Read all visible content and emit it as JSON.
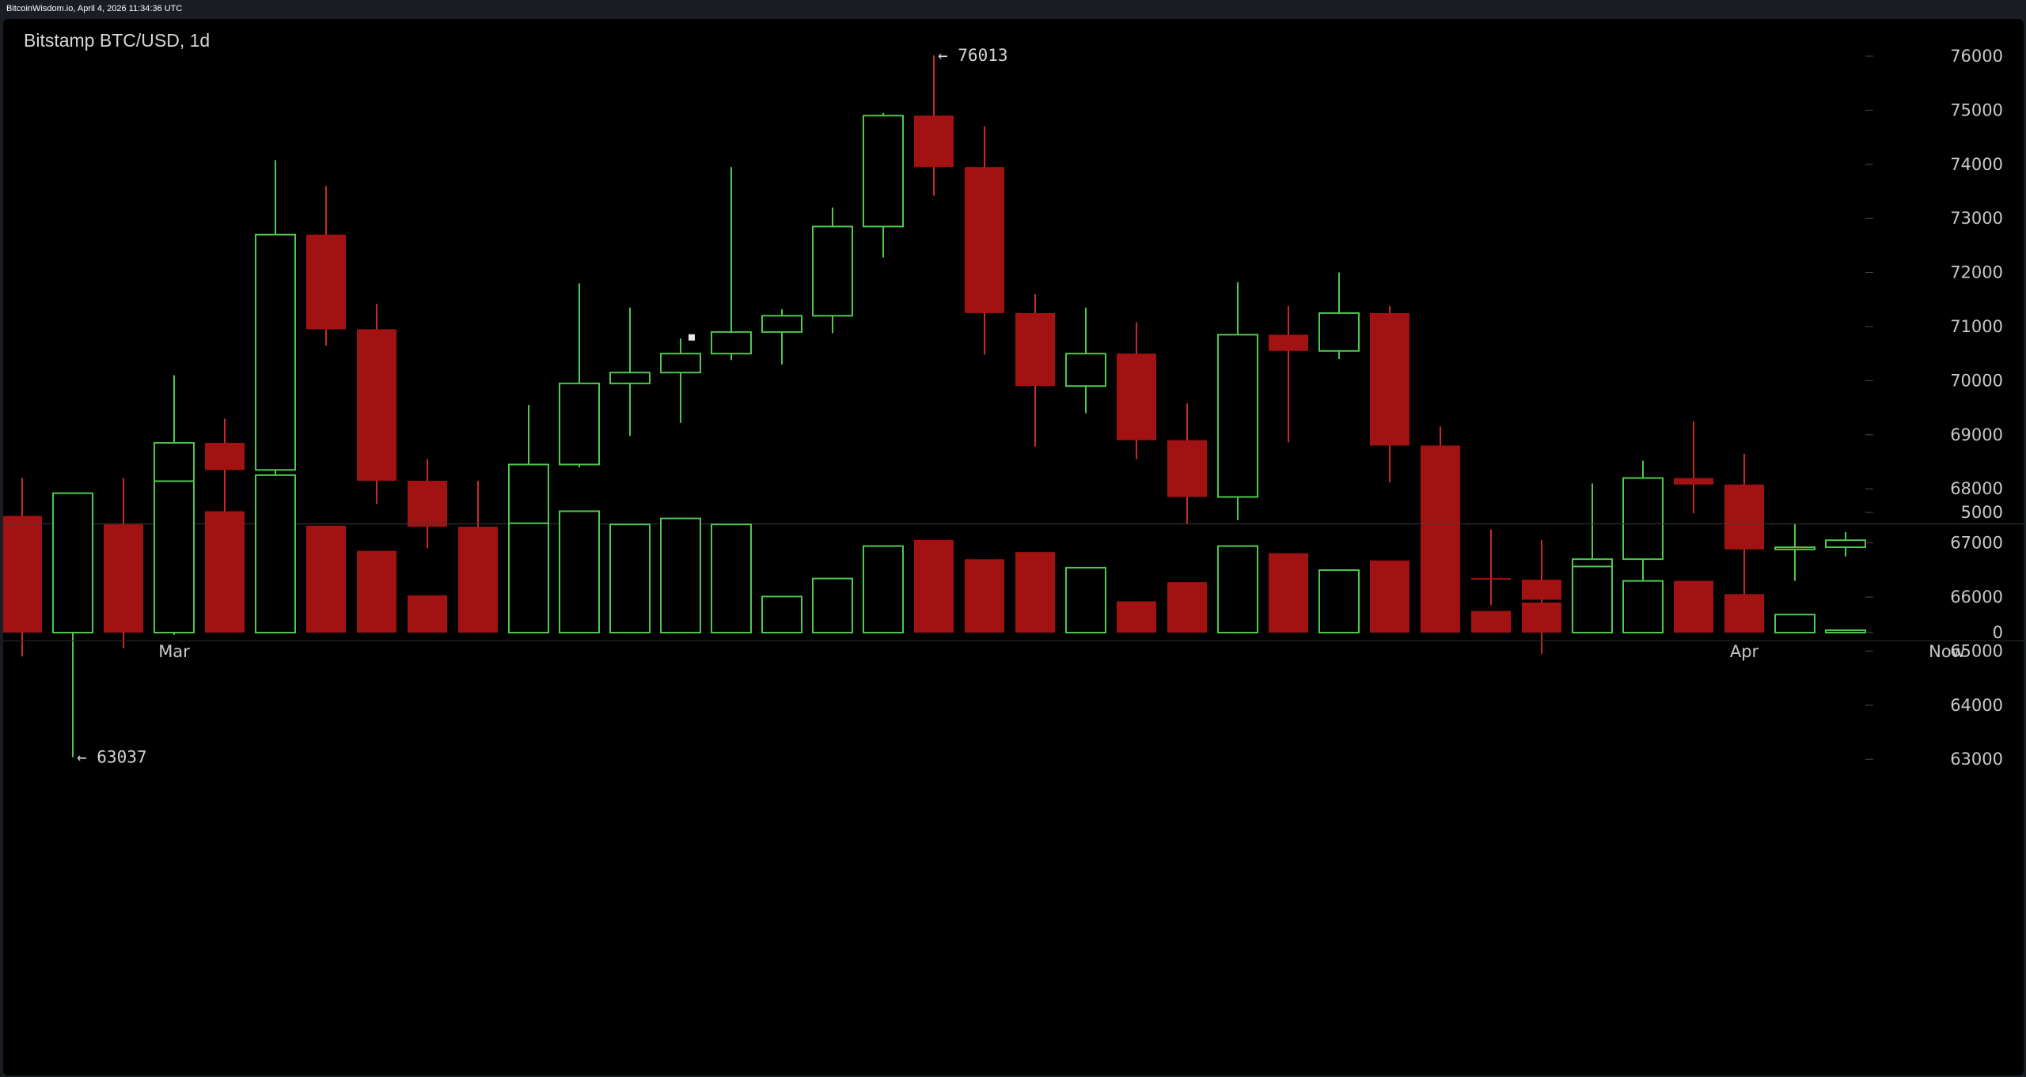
{
  "header": {
    "site_line": "BitcoinWisdom.io, April 4, 2026 11:34:36 UTC"
  },
  "chart_data": {
    "type": "candlestick",
    "title": "Bitstamp BTC/USD, 1d",
    "interval": "1d",
    "ylim": [
      62000,
      77000
    ],
    "yticks": [
      63000,
      64000,
      65000,
      66000,
      67000,
      68000,
      69000,
      70000,
      71000,
      72000,
      73000,
      74000,
      75000,
      76000
    ],
    "volume_ticks": [
      0,
      5000
    ],
    "volume_ylim": [
      0,
      7000
    ],
    "x_tick_labels": [
      {
        "label": "Mar",
        "index": 3
      },
      {
        "label": "Apr",
        "index": 34
      },
      {
        "label": "Now",
        "index": 38
      }
    ],
    "grid": false,
    "annotations": [
      {
        "text": "← 63037",
        "index": 1,
        "value": 63037
      },
      {
        "text": "← 76013",
        "index": 18,
        "value": 76013
      }
    ],
    "colors": {
      "up": "#4ec94e",
      "down": "#a31212",
      "down_wick": "#c62b2b",
      "background": "#000000"
    },
    "candles": [
      {
        "o": 67500,
        "h": 68200,
        "l": 64900,
        "c": 65900,
        "v": 3950
      },
      {
        "o": 65900,
        "h": 67750,
        "l": 63037,
        "c": 67000,
        "v": 5800
      },
      {
        "o": 67000,
        "h": 68200,
        "l": 65050,
        "c": 65800,
        "v": 4500
      },
      {
        "o": 65800,
        "h": 70100,
        "l": 65300,
        "c": 68850,
        "v": 6300
      },
      {
        "o": 68850,
        "h": 69300,
        "l": 66150,
        "c": 68350,
        "v": 5050
      },
      {
        "o": 68350,
        "h": 74080,
        "l": 67400,
        "c": 72700,
        "v": 6550
      },
      {
        "o": 72700,
        "h": 73600,
        "l": 70650,
        "c": 70950,
        "v": 4450
      },
      {
        "o": 70950,
        "h": 71420,
        "l": 67720,
        "c": 68150,
        "v": 3400
      },
      {
        "o": 68150,
        "h": 68550,
        "l": 66900,
        "c": 67300,
        "v": 1550
      },
      {
        "o": 67300,
        "h": 68150,
        "l": 65650,
        "c": 66000,
        "v": 2750
      },
      {
        "o": 66000,
        "h": 69550,
        "l": 65820,
        "c": 68450,
        "v": 4550
      },
      {
        "o": 68450,
        "h": 71800,
        "l": 68400,
        "c": 69950,
        "v": 5050
      },
      {
        "o": 69950,
        "h": 71350,
        "l": 68980,
        "c": 70150,
        "v": 4500
      },
      {
        "o": 70150,
        "h": 70780,
        "l": 69220,
        "c": 70500,
        "v": 4750
      },
      {
        "o": 70500,
        "h": 73950,
        "l": 70380,
        "c": 70900,
        "v": 4500
      },
      {
        "o": 70900,
        "h": 71320,
        "l": 70300,
        "c": 71200,
        "v": 1500
      },
      {
        "o": 71200,
        "h": 73200,
        "l": 70880,
        "c": 72850,
        "v": 2250
      },
      {
        "o": 72850,
        "h": 74950,
        "l": 72280,
        "c": 74900,
        "v": 3600
      },
      {
        "o": 74900,
        "h": 76013,
        "l": 73420,
        "c": 73950,
        "v": 3850
      },
      {
        "o": 73950,
        "h": 74700,
        "l": 70480,
        "c": 71250,
        "v": 3050
      },
      {
        "o": 71250,
        "h": 71600,
        "l": 68780,
        "c": 69900,
        "v": 3350
      },
      {
        "o": 69900,
        "h": 71350,
        "l": 69400,
        "c": 70500,
        "v": 2700
      },
      {
        "o": 70500,
        "h": 71080,
        "l": 68550,
        "c": 68900,
        "v": 1300
      },
      {
        "o": 68900,
        "h": 69580,
        "l": 67350,
        "c": 67850,
        "v": 2100
      },
      {
        "o": 67850,
        "h": 71820,
        "l": 67420,
        "c": 70850,
        "v": 3600
      },
      {
        "o": 70850,
        "h": 71380,
        "l": 68860,
        "c": 70550,
        "v": 3300
      },
      {
        "o": 70550,
        "h": 72000,
        "l": 70400,
        "c": 71250,
        "v": 2600
      },
      {
        "o": 71250,
        "h": 71380,
        "l": 68120,
        "c": 68800,
        "v": 3000
      },
      {
        "o": 68800,
        "h": 69150,
        "l": 65500,
        "c": 66350,
        "v": 3000
      },
      {
        "o": 66350,
        "h": 67250,
        "l": 65850,
        "c": 66320,
        "v": 900
      },
      {
        "o": 66320,
        "h": 67050,
        "l": 64950,
        "c": 65950,
        "v": 1250
      },
      {
        "o": 65950,
        "h": 68100,
        "l": 65950,
        "c": 66700,
        "v": 2750
      },
      {
        "o": 66700,
        "h": 68520,
        "l": 65900,
        "c": 68200,
        "v": 2150
      },
      {
        "o": 68200,
        "h": 69250,
        "l": 67550,
        "c": 68080,
        "v": 2150
      },
      {
        "o": 68080,
        "h": 68650,
        "l": 65680,
        "c": 66880,
        "v": 1600
      },
      {
        "o": 66880,
        "h": 67350,
        "l": 66300,
        "c": 66920,
        "v": 750
      },
      {
        "o": 66920,
        "h": 67200,
        "l": 66750,
        "c": 67050,
        "v": 100
      }
    ]
  }
}
